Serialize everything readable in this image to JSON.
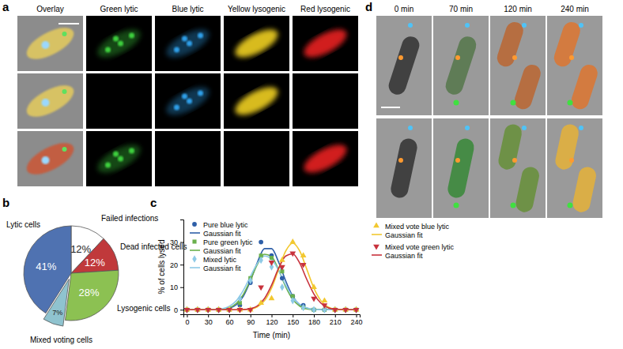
{
  "figure": {
    "a": {
      "label": "a",
      "columns": [
        "Overlay",
        "Green lytic",
        "Blue lytic",
        "Yellow lysogenic",
        "Red lysogenic"
      ]
    },
    "b": {
      "label": "b"
    },
    "c": {
      "label": "c"
    },
    "d": {
      "label": "d",
      "columns": [
        "0 min",
        "70 min",
        "120 min",
        "240 min"
      ]
    }
  },
  "chart_data": [
    {
      "type": "pie",
      "categories": [
        "Failed infections",
        "Dead infected cells",
        "Lysogenic cells",
        "Mixed voting cells",
        "Lytic cells"
      ],
      "values": [
        12,
        12,
        28,
        7,
        41
      ],
      "value_labels": [
        "12%",
        "12%",
        "28%",
        "7%",
        "41%"
      ],
      "colors": [
        "#ffffff",
        "#c0393b",
        "#8cc152",
        "#8fc3cf",
        "#4f72b1"
      ],
      "data_labels": true
    },
    {
      "type": "scatter",
      "xlabel": "Time (min)",
      "ylabel": "% of cells lysed",
      "xlim": [
        -5,
        245
      ],
      "ylim": [
        -2,
        40
      ],
      "xticks": [
        0,
        30,
        60,
        90,
        120,
        150,
        180,
        210,
        240
      ],
      "yticks": [
        0,
        10,
        20,
        30
      ],
      "legend": "top",
      "series": [
        {
          "name": "Pure blue lytic",
          "type": "scatter",
          "marker": "circle",
          "color": "#2e5fa8",
          "x": [
            0,
            15,
            30,
            45,
            60,
            75,
            90,
            105,
            120,
            135,
            150,
            165,
            180,
            195,
            210,
            225,
            240
          ],
          "values": [
            0,
            0,
            0,
            0,
            0,
            2,
            12,
            30,
            24,
            14,
            6,
            2,
            0,
            0,
            0,
            0,
            0
          ]
        },
        {
          "name": "Gaussian fit",
          "type": "line",
          "color": "#2e5fa8",
          "x": [
            0,
            10,
            20,
            30,
            40,
            50,
            60,
            70,
            80,
            90,
            100,
            110,
            120,
            130,
            140,
            150,
            160,
            170,
            180,
            190,
            200,
            210,
            220,
            230,
            240
          ],
          "values": [
            0,
            0,
            0,
            0,
            0,
            0.1,
            0.7,
            2.2,
            6.0,
            12.8,
            21.1,
            27.1,
            27.1,
            21.1,
            12.8,
            6.0,
            2.2,
            0.7,
            0.1,
            0,
            0,
            0,
            0,
            0,
            0
          ]
        },
        {
          "name": "Pure green lytic",
          "type": "scatter",
          "marker": "square",
          "color": "#6ab04c",
          "x": [
            0,
            15,
            30,
            45,
            60,
            75,
            90,
            105,
            120,
            135,
            150,
            165,
            180,
            195,
            210,
            225,
            240
          ],
          "values": [
            0,
            0,
            0,
            0,
            0,
            3,
            14,
            24,
            23,
            17,
            6,
            1,
            0,
            0,
            0,
            0,
            0
          ]
        },
        {
          "name": "Gaussian fit",
          "type": "line",
          "color": "#6ab04c",
          "x": [
            0,
            10,
            20,
            30,
            40,
            50,
            60,
            70,
            80,
            90,
            100,
            110,
            120,
            130,
            140,
            150,
            160,
            170,
            180,
            190,
            200,
            210,
            220,
            230,
            240
          ],
          "values": [
            0,
            0,
            0,
            0,
            0,
            0.2,
            0.9,
            2.8,
            6.8,
            13.2,
            20.2,
            24.6,
            23.6,
            17.6,
            10.2,
            4.6,
            1.6,
            0.4,
            0.1,
            0,
            0,
            0,
            0,
            0,
            0
          ]
        },
        {
          "name": "Mixed lytic",
          "type": "scatter",
          "marker": "diamond",
          "color": "#8ecae6",
          "x": [
            0,
            15,
            30,
            45,
            60,
            75,
            90,
            105,
            120,
            135,
            150,
            165,
            180,
            195,
            210,
            225,
            240
          ],
          "values": [
            0,
            0,
            0,
            0,
            0,
            5,
            13,
            22,
            19,
            10,
            4,
            1,
            0,
            0,
            0,
            0,
            0
          ]
        },
        {
          "name": "Gaussian fit",
          "type": "line",
          "color": "#8ecae6",
          "x": [
            0,
            10,
            20,
            30,
            40,
            50,
            60,
            70,
            80,
            90,
            100,
            110,
            120,
            130,
            140,
            150,
            160,
            170,
            180,
            190,
            200,
            210,
            220,
            230,
            240
          ],
          "values": [
            0,
            0,
            0,
            0,
            0.1,
            0.4,
            1.5,
            4.0,
            8.6,
            14.8,
            20.6,
            23.8,
            22.4,
            17.4,
            11.0,
            5.7,
            2.4,
            0.8,
            0.2,
            0,
            0,
            0,
            0,
            0,
            0
          ]
        },
        {
          "name": "Mixed vote blue lytic",
          "type": "scatter",
          "marker": "triangle-up",
          "color": "#f2c830",
          "x": [
            0,
            15,
            30,
            45,
            60,
            75,
            90,
            105,
            120,
            135,
            150,
            165,
            180,
            195,
            210,
            225,
            240
          ],
          "values": [
            0,
            0,
            0,
            0,
            0,
            0,
            0,
            3,
            5,
            22,
            30,
            24,
            10,
            4,
            0,
            0,
            0
          ]
        },
        {
          "name": "Gaussian fit",
          "type": "line",
          "color": "#f2c830",
          "x": [
            0,
            10,
            20,
            30,
            40,
            50,
            60,
            70,
            80,
            90,
            100,
            110,
            120,
            130,
            140,
            150,
            160,
            170,
            180,
            190,
            200,
            210,
            220,
            230,
            240
          ],
          "values": [
            0,
            0,
            0,
            0,
            0,
            0,
            0,
            0,
            0.1,
            0.3,
            1.3,
            4.0,
            9.6,
            17.9,
            26.0,
            29.5,
            26.0,
            17.9,
            9.6,
            4.0,
            1.3,
            0.3,
            0.1,
            0,
            0
          ]
        },
        {
          "name": "Mixed vote green lytic",
          "type": "scatter",
          "marker": "triangle-down",
          "color": "#c8323c",
          "x": [
            0,
            15,
            30,
            45,
            60,
            75,
            90,
            105,
            120,
            135,
            150,
            165,
            180,
            195,
            210,
            225,
            240
          ],
          "values": [
            0,
            0,
            0,
            0,
            0,
            0,
            0,
            10,
            21,
            19,
            25,
            20,
            5,
            2,
            0,
            0,
            0
          ]
        },
        {
          "name": "Gaussian fit",
          "type": "line",
          "color": "#c8323c",
          "x": [
            0,
            10,
            20,
            30,
            40,
            50,
            60,
            70,
            80,
            90,
            100,
            110,
            120,
            130,
            140,
            150,
            160,
            170,
            180,
            190,
            200,
            210,
            220,
            230,
            240
          ],
          "values": [
            0,
            0,
            0,
            0,
            0,
            0,
            0,
            0,
            0.1,
            0.5,
            1.7,
            5.0,
            10.9,
            18.4,
            23.8,
            24.8,
            20.6,
            13.4,
            7.0,
            2.9,
            0.9,
            0.2,
            0.1,
            0,
            0
          ]
        }
      ]
    }
  ]
}
